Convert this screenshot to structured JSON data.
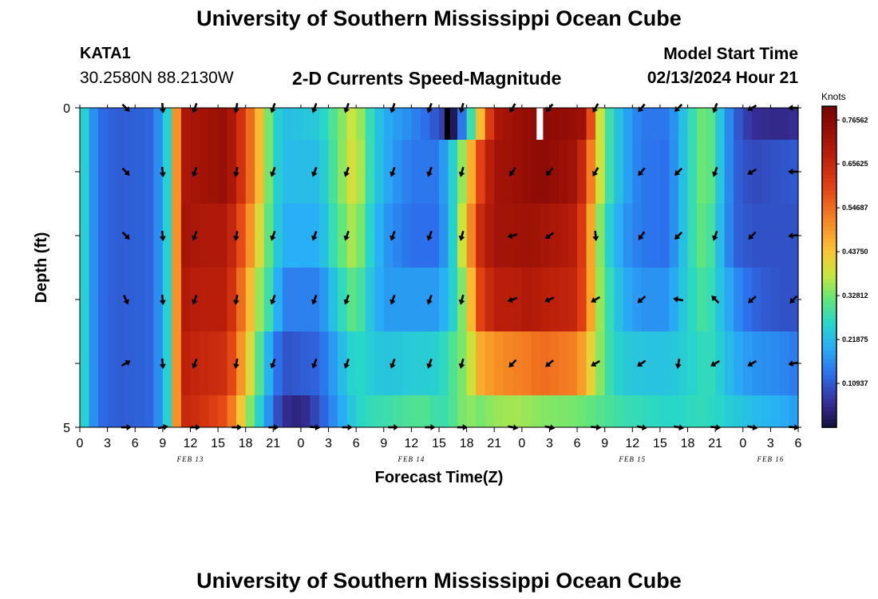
{
  "header": {
    "title": "University of Southern Mississippi Ocean Cube",
    "station": "KATA1",
    "coords": "30.2580N  88.2130W",
    "chart_name": "2-D Currents Speed-Magnitude",
    "start_label": "Model Start Time",
    "start_value": "02/13/2024 Hour 21"
  },
  "footer": {
    "title": "University of Southern Mississippi Ocean Cube"
  },
  "chart_data": {
    "type": "heatmap",
    "title": "2-D Currents Speed-Magnitude",
    "xlabel": "Forecast Time(Z)",
    "ylabel": "Depth (ft)",
    "x_tick_labels": [
      "0",
      "3",
      "6",
      "9",
      "12",
      "15",
      "18",
      "21",
      "0",
      "3",
      "6",
      "9",
      "12",
      "15",
      "18",
      "21",
      "0",
      "3",
      "6",
      "9",
      "12",
      "15",
      "18",
      "21",
      "0",
      "3",
      "6"
    ],
    "y_tick_labels": [
      "0",
      "5"
    ],
    "date_labels": [
      {
        "text": "FEB 13",
        "hour": 12
      },
      {
        "text": "FEB 14",
        "hour": 36
      },
      {
        "text": "FEB 15",
        "hour": 60
      },
      {
        "text": "FEB 16",
        "hour": 75
      }
    ],
    "x_range_hours": [
      0,
      78
    ],
    "depth_range_ft": [
      0,
      5
    ],
    "colorbar": {
      "unit": "Knots",
      "range": [
        0.0,
        0.8
      ],
      "tick_labels": [
        "0.76562",
        "0.65625",
        "0.54687",
        "0.43750",
        "0.32812",
        "0.21875",
        "0.10937"
      ],
      "tick_values": [
        0.76562,
        0.65625,
        0.54687,
        0.4375,
        0.32812,
        0.21875,
        0.10937
      ]
    },
    "depth_rows": [
      0,
      1,
      2,
      3,
      4,
      5
    ],
    "speed_profile_by_row": [
      [
        [
          0,
          0.2
        ],
        [
          0.5,
          0.25
        ],
        [
          1,
          0.2
        ],
        [
          2,
          0.13
        ],
        [
          4,
          0.11
        ],
        [
          8,
          0.12
        ],
        [
          9.5,
          0.25
        ],
        [
          10.5,
          0.5
        ],
        [
          11,
          0.7
        ],
        [
          13,
          0.72
        ],
        [
          16,
          0.74
        ],
        [
          18,
          0.6
        ],
        [
          19.5,
          0.45
        ],
        [
          21,
          0.27
        ],
        [
          22,
          0.22
        ],
        [
          26,
          0.24
        ],
        [
          28,
          0.32
        ],
        [
          30,
          0.4
        ],
        [
          31,
          0.3
        ],
        [
          33,
          0.2
        ],
        [
          36,
          0.16
        ],
        [
          38,
          0.12
        ],
        [
          39.5,
          0.08
        ],
        [
          40.5,
          0.02
        ],
        [
          42,
          0.2
        ],
        [
          43.5,
          0.45
        ],
        [
          45,
          0.7
        ],
        [
          47,
          0.73
        ],
        [
          49,
          0.75
        ],
        [
          50,
          0.76
        ],
        [
          54,
          0.74
        ],
        [
          55,
          0.72
        ],
        [
          56,
          0.45
        ],
        [
          57,
          0.32
        ],
        [
          58,
          0.25
        ],
        [
          59,
          0.2
        ],
        [
          61,
          0.14
        ],
        [
          64,
          0.14
        ],
        [
          65,
          0.2
        ],
        [
          67,
          0.3
        ],
        [
          68,
          0.35
        ],
        [
          69,
          0.27
        ],
        [
          71,
          0.12
        ],
        [
          73,
          0.06
        ],
        [
          76,
          0.05
        ],
        [
          78,
          0.06
        ]
      ],
      [
        [
          0,
          0.2
        ],
        [
          0.5,
          0.25
        ],
        [
          1,
          0.2
        ],
        [
          2,
          0.13
        ],
        [
          4,
          0.11
        ],
        [
          8,
          0.12
        ],
        [
          9.5,
          0.25
        ],
        [
          10.5,
          0.5
        ],
        [
          11,
          0.7
        ],
        [
          13,
          0.72
        ],
        [
          16,
          0.74
        ],
        [
          18,
          0.6
        ],
        [
          19.5,
          0.45
        ],
        [
          21,
          0.27
        ],
        [
          22,
          0.22
        ],
        [
          26,
          0.22
        ],
        [
          28,
          0.32
        ],
        [
          30,
          0.42
        ],
        [
          31,
          0.3
        ],
        [
          33,
          0.2
        ],
        [
          36,
          0.14
        ],
        [
          39,
          0.14
        ],
        [
          40.5,
          0.25
        ],
        [
          42,
          0.4
        ],
        [
          43.5,
          0.6
        ],
        [
          45,
          0.72
        ],
        [
          47,
          0.73
        ],
        [
          49,
          0.75
        ],
        [
          50,
          0.76
        ],
        [
          54,
          0.72
        ],
        [
          55,
          0.6
        ],
        [
          56,
          0.45
        ],
        [
          57,
          0.32
        ],
        [
          58,
          0.25
        ],
        [
          59,
          0.2
        ],
        [
          61,
          0.14
        ],
        [
          64,
          0.13
        ],
        [
          65,
          0.2
        ],
        [
          67,
          0.3
        ],
        [
          68,
          0.35
        ],
        [
          69,
          0.27
        ],
        [
          71,
          0.12
        ],
        [
          73,
          0.09
        ],
        [
          76,
          0.1
        ],
        [
          78,
          0.11
        ]
      ],
      [
        [
          0,
          0.2
        ],
        [
          0.5,
          0.25
        ],
        [
          1,
          0.2
        ],
        [
          2,
          0.13
        ],
        [
          4,
          0.11
        ],
        [
          8,
          0.12
        ],
        [
          9.5,
          0.25
        ],
        [
          10.5,
          0.5
        ],
        [
          11,
          0.72
        ],
        [
          13,
          0.7
        ],
        [
          16,
          0.7
        ],
        [
          18,
          0.55
        ],
        [
          19.5,
          0.4
        ],
        [
          21,
          0.27
        ],
        [
          22,
          0.2
        ],
        [
          26,
          0.2
        ],
        [
          28,
          0.3
        ],
        [
          30,
          0.38
        ],
        [
          31,
          0.28
        ],
        [
          33,
          0.18
        ],
        [
          36,
          0.13
        ],
        [
          39,
          0.13
        ],
        [
          40.5,
          0.25
        ],
        [
          42,
          0.45
        ],
        [
          43.5,
          0.65
        ],
        [
          45,
          0.72
        ],
        [
          47,
          0.72
        ],
        [
          49,
          0.73
        ],
        [
          50,
          0.72
        ],
        [
          54,
          0.68
        ],
        [
          55,
          0.55
        ],
        [
          56,
          0.4
        ],
        [
          57,
          0.28
        ],
        [
          58,
          0.22
        ],
        [
          59,
          0.18
        ],
        [
          61,
          0.14
        ],
        [
          64,
          0.13
        ],
        [
          65,
          0.2
        ],
        [
          67,
          0.3
        ],
        [
          68,
          0.33
        ],
        [
          69,
          0.25
        ],
        [
          71,
          0.12
        ],
        [
          73,
          0.1
        ],
        [
          76,
          0.1
        ],
        [
          78,
          0.1
        ]
      ],
      [
        [
          0,
          0.2
        ],
        [
          0.5,
          0.25
        ],
        [
          1,
          0.2
        ],
        [
          2,
          0.13
        ],
        [
          4,
          0.11
        ],
        [
          8,
          0.12
        ],
        [
          9.5,
          0.25
        ],
        [
          10.5,
          0.5
        ],
        [
          11,
          0.7
        ],
        [
          13,
          0.68
        ],
        [
          16,
          0.68
        ],
        [
          18,
          0.5
        ],
        [
          19.5,
          0.35
        ],
        [
          21,
          0.25
        ],
        [
          22,
          0.15
        ],
        [
          26,
          0.15
        ],
        [
          28,
          0.25
        ],
        [
          30,
          0.33
        ],
        [
          31,
          0.25
        ],
        [
          33,
          0.18
        ],
        [
          36,
          0.18
        ],
        [
          39,
          0.18
        ],
        [
          40.5,
          0.25
        ],
        [
          42,
          0.38
        ],
        [
          43.5,
          0.6
        ],
        [
          45,
          0.68
        ],
        [
          47,
          0.68
        ],
        [
          49,
          0.7
        ],
        [
          50,
          0.68
        ],
        [
          54,
          0.66
        ],
        [
          55,
          0.55
        ],
        [
          56,
          0.4
        ],
        [
          57,
          0.3
        ],
        [
          58,
          0.25
        ],
        [
          59,
          0.2
        ],
        [
          61,
          0.17
        ],
        [
          64,
          0.17
        ],
        [
          65,
          0.22
        ],
        [
          67,
          0.28
        ],
        [
          68,
          0.3
        ],
        [
          69,
          0.25
        ],
        [
          71,
          0.17
        ],
        [
          73,
          0.12
        ],
        [
          76,
          0.1
        ],
        [
          78,
          0.1
        ]
      ],
      [
        [
          0,
          0.2
        ],
        [
          0.5,
          0.25
        ],
        [
          1,
          0.2
        ],
        [
          2,
          0.13
        ],
        [
          4,
          0.11
        ],
        [
          8,
          0.12
        ],
        [
          9.5,
          0.25
        ],
        [
          10.5,
          0.5
        ],
        [
          11,
          0.68
        ],
        [
          13,
          0.66
        ],
        [
          16,
          0.64
        ],
        [
          18,
          0.45
        ],
        [
          19.5,
          0.3
        ],
        [
          21,
          0.16
        ],
        [
          22,
          0.1
        ],
        [
          26,
          0.12
        ],
        [
          28,
          0.2
        ],
        [
          30,
          0.27
        ],
        [
          31,
          0.25
        ],
        [
          33,
          0.23
        ],
        [
          36,
          0.24
        ],
        [
          39,
          0.25
        ],
        [
          40.5,
          0.3
        ],
        [
          42,
          0.35
        ],
        [
          43.5,
          0.47
        ],
        [
          45,
          0.5
        ],
        [
          47,
          0.52
        ],
        [
          49,
          0.53
        ],
        [
          50,
          0.55
        ],
        [
          54,
          0.52
        ],
        [
          55,
          0.45
        ],
        [
          56,
          0.38
        ],
        [
          57,
          0.3
        ],
        [
          58,
          0.26
        ],
        [
          59,
          0.24
        ],
        [
          61,
          0.23
        ],
        [
          64,
          0.23
        ],
        [
          65,
          0.24
        ],
        [
          67,
          0.26
        ],
        [
          68,
          0.28
        ],
        [
          69,
          0.26
        ],
        [
          71,
          0.2
        ],
        [
          73,
          0.17
        ],
        [
          76,
          0.16
        ],
        [
          78,
          0.14
        ]
      ],
      [
        [
          0,
          0.2
        ],
        [
          0.5,
          0.25
        ],
        [
          1,
          0.2
        ],
        [
          2,
          0.13
        ],
        [
          4,
          0.11
        ],
        [
          8,
          0.12
        ],
        [
          9.5,
          0.25
        ],
        [
          10.5,
          0.5
        ],
        [
          11,
          0.66
        ],
        [
          13,
          0.64
        ],
        [
          16,
          0.58
        ],
        [
          18,
          0.38
        ],
        [
          19.5,
          0.25
        ],
        [
          21,
          0.13
        ],
        [
          22,
          0.06
        ],
        [
          24,
          0.04
        ],
        [
          26,
          0.1
        ],
        [
          28,
          0.18
        ],
        [
          30,
          0.25
        ],
        [
          31,
          0.27
        ],
        [
          33,
          0.28
        ],
        [
          36,
          0.3
        ],
        [
          38,
          0.3
        ],
        [
          39,
          0.27
        ],
        [
          40.5,
          0.3
        ],
        [
          42,
          0.35
        ],
        [
          43.5,
          0.33
        ],
        [
          45,
          0.35
        ],
        [
          47,
          0.36
        ],
        [
          49,
          0.35
        ],
        [
          50,
          0.34
        ],
        [
          54,
          0.33
        ],
        [
          55,
          0.32
        ],
        [
          56,
          0.31
        ],
        [
          57,
          0.3
        ],
        [
          58,
          0.29
        ],
        [
          59,
          0.28
        ],
        [
          61,
          0.27
        ],
        [
          64,
          0.26
        ],
        [
          65,
          0.26
        ],
        [
          67,
          0.27
        ],
        [
          68,
          0.27
        ],
        [
          69,
          0.26
        ],
        [
          71,
          0.24
        ],
        [
          73,
          0.22
        ],
        [
          76,
          0.2
        ],
        [
          78,
          0.18
        ]
      ]
    ],
    "missing_cells": [
      {
        "depth_row": 0,
        "hour_start": 39.6,
        "hour_end": 40.2
      },
      {
        "depth_row": 0,
        "hour_start": 49.6,
        "hour_end": 50.3
      }
    ],
    "vector_hours": [
      5,
      9,
      12.5,
      17,
      21,
      25.5,
      29,
      34,
      38,
      41.5,
      47,
      51,
      56,
      61,
      65,
      69,
      73,
      77.5
    ],
    "vector_directions_deg": [
      [
        135,
        175,
        200,
        190,
        200,
        200,
        200,
        200,
        200,
        195,
        210,
        220,
        210,
        220,
        225,
        200,
        240,
        270
      ],
      [
        135,
        175,
        200,
        190,
        200,
        200,
        200,
        200,
        200,
        195,
        215,
        220,
        210,
        220,
        225,
        200,
        240,
        270
      ],
      [
        135,
        175,
        200,
        190,
        200,
        200,
        200,
        200,
        200,
        195,
        255,
        235,
        175,
        215,
        225,
        200,
        225,
        265
      ],
      [
        155,
        175,
        200,
        190,
        200,
        200,
        200,
        200,
        200,
        195,
        250,
        245,
        240,
        230,
        280,
        315,
        230,
        225
      ],
      [
        60,
        175,
        200,
        190,
        200,
        200,
        200,
        200,
        200,
        195,
        225,
        230,
        240,
        235,
        190,
        240,
        240,
        260
      ],
      [
        90,
        80,
        90,
        90,
        90,
        95,
        90,
        90,
        90,
        90,
        100,
        100,
        95,
        100,
        100,
        95,
        100,
        95
      ]
    ]
  }
}
